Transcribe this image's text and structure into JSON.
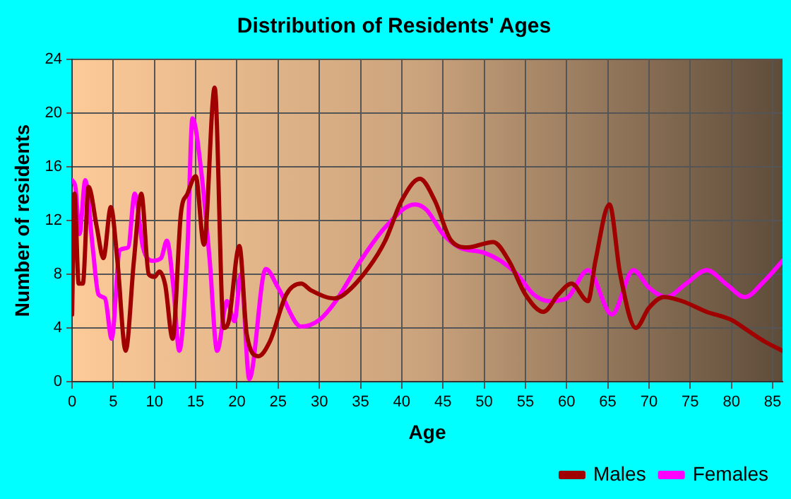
{
  "chart_data": {
    "type": "line",
    "title": "Distribution of Residents' Ages",
    "xlabel": "Age",
    "ylabel": "Number of residents",
    "xlim": [
      0,
      86.2
    ],
    "xticks": [
      0,
      5,
      10,
      15,
      20,
      25,
      30,
      35,
      40,
      45,
      50,
      55,
      60,
      65,
      70,
      75,
      80,
      85
    ],
    "ylim": [
      0,
      24
    ],
    "yticks": [
      0,
      4,
      8,
      12,
      16,
      20,
      24
    ],
    "grid": true,
    "legend": "bottom right",
    "marker": "none",
    "line_style": "solid",
    "series": [
      {
        "name": "Males",
        "color": "#a00000",
        "x": [
          0,
          0.3,
          0.8,
          1.3,
          2,
          3,
          3.8,
          4.7,
          5.5,
          6.5,
          7.5,
          8.4,
          9.3,
          10,
          10.6,
          11.3,
          12.2,
          13.2,
          14,
          15,
          16,
          17.3,
          18.4,
          19,
          20.3,
          21.2,
          22.6,
          24,
          26,
          27.8,
          29,
          31.8,
          33,
          36,
          38,
          40,
          42.2,
          44,
          46,
          48,
          51.1,
          53,
          55,
          57.2,
          59,
          60.6,
          62.6,
          63.5,
          65.2,
          66.5,
          68.4,
          70,
          71.8,
          74,
          77,
          80,
          82,
          84,
          86.2
        ],
        "values": [
          5,
          14,
          7.3,
          7.3,
          14.5,
          11.5,
          9.2,
          13,
          9,
          2.3,
          9,
          14,
          8,
          7.8,
          8.2,
          7.2,
          3.2,
          12.5,
          14,
          15.3,
          10.2,
          21.9,
          4,
          4.5,
          10.1,
          3.5,
          1.9,
          3,
          6.5,
          7.3,
          6.8,
          6.2,
          6.5,
          8.5,
          10.5,
          13.5,
          15.1,
          13.5,
          10.5,
          10,
          10.4,
          9,
          6.5,
          5.2,
          6.5,
          7.3,
          6,
          9,
          13.2,
          8,
          4,
          5.5,
          6.3,
          6,
          5.2,
          4.6,
          3.8,
          3,
          2.3
        ]
      },
      {
        "name": "Females",
        "color": "#ff00ff",
        "x": [
          0,
          0.4,
          0.9,
          1.6,
          2.5,
          3.2,
          4,
          4.8,
          5.8,
          6.8,
          7.6,
          8.6,
          9.8,
          10.8,
          11.5,
          12.3,
          13,
          14,
          14.6,
          15.7,
          16.7,
          17.6,
          18.8,
          19.7,
          20.5,
          21.5,
          23.5,
          25,
          27.8,
          30,
          32,
          35,
          38,
          41.6,
          43,
          45,
          47,
          50,
          52,
          54,
          56,
          58,
          60,
          62.6,
          65.5,
          68.1,
          70,
          72.1,
          74.5,
          77,
          79.5,
          81.6,
          84,
          86.2
        ],
        "values": [
          15,
          14.5,
          11,
          15,
          10,
          6.5,
          6.2,
          3.2,
          9.8,
          10,
          14,
          10,
          9,
          9.2,
          10.5,
          7,
          2.3,
          10,
          19.6,
          15.5,
          9,
          2.3,
          6,
          4.5,
          8,
          0.2,
          8.4,
          7,
          4.1,
          4.6,
          6,
          9,
          11.5,
          13.2,
          12.8,
          11,
          10,
          9.6,
          9,
          8,
          6.5,
          6,
          6.2,
          8.3,
          5,
          8.3,
          7,
          6.3,
          7.3,
          8.3,
          7.2,
          6.3,
          7.5,
          9
        ]
      }
    ]
  }
}
